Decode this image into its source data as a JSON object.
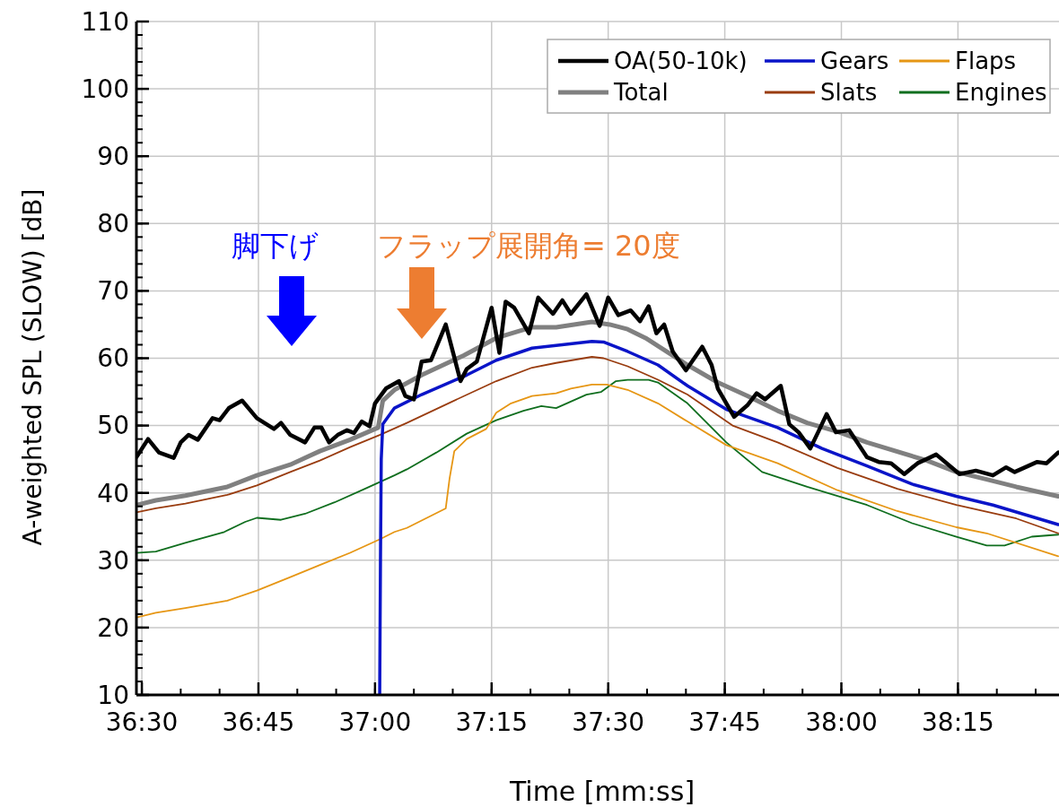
{
  "chart_data": {
    "type": "line",
    "xlabel": "Time [mm:ss]",
    "ylabel": "A-weighted SPL (SLOW) [dB]",
    "xlim": [
      2189.3,
      2308
    ],
    "ylim": [
      10,
      110
    ],
    "xticks": [
      {
        "value": 2190,
        "label": "36:30"
      },
      {
        "value": 2205,
        "label": "36:45"
      },
      {
        "value": 2220,
        "label": "37:00"
      },
      {
        "value": 2235,
        "label": "37:15"
      },
      {
        "value": 2250,
        "label": "37:30"
      },
      {
        "value": 2265,
        "label": "37:45"
      },
      {
        "value": 2280,
        "label": "38:00"
      },
      {
        "value": 2295,
        "label": "38:15"
      }
    ],
    "yticks": [
      10,
      20,
      30,
      40,
      50,
      60,
      70,
      80,
      90,
      100,
      110
    ],
    "grid": true,
    "legend": "top right",
    "line_style": "solid",
    "annotations": [
      "脚下げ",
      "フラップ展開角= 20度"
    ],
    "series": [
      {
        "name": "OA(50-10k)",
        "color": "#000000",
        "x": [
          2189.3,
          2190.8,
          2192.2,
          2194.1,
          2195.0,
          2196.0,
          2197.2,
          2199.1,
          2200.0,
          2201.2,
          2202.9,
          2204.8,
          2207.0,
          2207.9,
          2209.1,
          2211.0,
          2212.2,
          2213.1,
          2214.1,
          2215.2,
          2216.4,
          2217.3,
          2218.3,
          2219.3,
          2220.0,
          2221.4,
          2223.1,
          2223.9,
          2225.0,
          2226.0,
          2227.2,
          2229.1,
          2231.0,
          2231.8,
          2233.1,
          2235.0,
          2236.0,
          2236.8,
          2237.9,
          2239.8,
          2241.0,
          2242.9,
          2244.1,
          2245.2,
          2247.2,
          2248.9,
          2250.0,
          2251.3,
          2252.9,
          2254.1,
          2255.2,
          2256.2,
          2257.2,
          2258.3,
          2260.0,
          2262.1,
          2263.3,
          2264.1,
          2266.2,
          2267.9,
          2269.1,
          2270.2,
          2272.2,
          2273.3,
          2274.5,
          2276.0,
          2277.0,
          2278.1,
          2279.3,
          2281.0,
          2283.3,
          2284.8,
          2286.4,
          2288.1,
          2289.8,
          2292.2,
          2295.2,
          2297.3,
          2299.5,
          2301.2,
          2302.3,
          2305.2,
          2306.4,
          2307.9
        ],
        "values": [
          45.3,
          48.0,
          46.0,
          45.2,
          47.5,
          48.6,
          47.9,
          51.1,
          50.8,
          52.6,
          53.7,
          51.1,
          49.5,
          50.4,
          48.6,
          47.5,
          49.7,
          49.7,
          47.5,
          48.6,
          49.3,
          48.9,
          50.6,
          49.9,
          53.3,
          55.5,
          56.6,
          54.4,
          53.9,
          59.5,
          59.7,
          65.0,
          56.6,
          58.4,
          59.5,
          67.5,
          60.8,
          68.4,
          67.5,
          63.7,
          69.0,
          66.6,
          68.6,
          66.6,
          69.5,
          64.8,
          69.0,
          66.4,
          67.1,
          65.5,
          67.7,
          63.7,
          65.0,
          61.0,
          58.2,
          61.7,
          59.0,
          55.5,
          51.3,
          53.0,
          54.8,
          53.9,
          55.9,
          50.2,
          49.0,
          46.6,
          49.0,
          51.7,
          49.0,
          49.3,
          45.3,
          44.6,
          44.4,
          42.8,
          44.4,
          45.7,
          42.8,
          43.3,
          42.6,
          43.8,
          43.1,
          44.6,
          44.4,
          46.0
        ]
      },
      {
        "name": "Gears",
        "color": "#0a14c8",
        "x": [
          2220.6,
          2220.7,
          2220.8,
          2221.0,
          2222.5,
          2226.0,
          2231.8,
          2235.6,
          2240.2,
          2243.3,
          2247.9,
          2249.4,
          2252.5,
          2256.4,
          2260.2,
          2265.2,
          2271.8,
          2277.5,
          2283.3,
          2289.1,
          2294.8,
          2299.5,
          2307.9
        ],
        "values": [
          10,
          30,
          45,
          50.2,
          52.6,
          54.6,
          57.5,
          59.7,
          61.5,
          61.9,
          62.5,
          62.4,
          61.0,
          59.0,
          55.9,
          52.4,
          49.7,
          46.6,
          44.0,
          41.3,
          39.5,
          38.2,
          35.3
        ]
      },
      {
        "name": "Flaps",
        "color": "#e69614",
        "x": [
          2189.3,
          2191.8,
          2195.6,
          2201.0,
          2204.8,
          2209.1,
          2212.9,
          2216.8,
          2220.6,
          2222.5,
          2224.1,
          2229.1,
          2229.6,
          2230.2,
          2231.8,
          2234.3,
          2235.6,
          2237.5,
          2240.2,
          2243.3,
          2245.2,
          2247.9,
          2249.8,
          2252.5,
          2256.4,
          2260.2,
          2265.2,
          2271.8,
          2279.5,
          2287.2,
          2294.8,
          2298.7,
          2307.9
        ],
        "values": [
          21.5,
          22.2,
          22.9,
          24.0,
          25.5,
          27.5,
          29.3,
          31.1,
          33.1,
          34.2,
          34.8,
          37.7,
          42.2,
          46.2,
          48.0,
          49.5,
          51.9,
          53.3,
          54.4,
          54.8,
          55.5,
          56.1,
          56.1,
          55.3,
          53.3,
          50.6,
          47.1,
          44.4,
          40.4,
          37.3,
          34.9,
          34.0,
          30.6
        ]
      },
      {
        "name": "Total",
        "color": "#808080",
        "x": [
          2189.3,
          2191.8,
          2195.6,
          2201.0,
          2204.8,
          2209.1,
          2212.9,
          2216.8,
          2220.4,
          2221.0,
          2222.5,
          2226.0,
          2231.4,
          2235.6,
          2240.2,
          2243.3,
          2247.9,
          2250.2,
          2252.5,
          2254.8,
          2260.2,
          2264.1,
          2267.9,
          2271.8,
          2275.6,
          2279.5,
          2283.3,
          2291.0,
          2294.8,
          2298.7,
          2302.5,
          2307.9
        ],
        "values": [
          38.2,
          38.9,
          39.6,
          40.9,
          42.6,
          44.2,
          46.2,
          47.9,
          49.7,
          53.7,
          55.3,
          57.5,
          60.4,
          63.0,
          64.6,
          64.6,
          65.4,
          65.0,
          64.3,
          63.0,
          59.0,
          56.4,
          54.4,
          52.2,
          50.4,
          49.1,
          47.5,
          44.8,
          43.1,
          42.0,
          40.9,
          39.5
        ]
      },
      {
        "name": "Slats",
        "color": "#993c0f",
        "x": [
          2189.3,
          2191.8,
          2195.6,
          2201.0,
          2204.8,
          2209.1,
          2212.9,
          2216.8,
          2220.6,
          2224.1,
          2229.8,
          2235.6,
          2240.2,
          2243.3,
          2247.9,
          2249.4,
          2252.5,
          2256.4,
          2260.2,
          2266.0,
          2271.8,
          2279.5,
          2287.2,
          2294.8,
          2302.5,
          2307.9
        ],
        "values": [
          37.1,
          37.7,
          38.4,
          39.7,
          41.1,
          43.1,
          44.8,
          46.8,
          48.6,
          50.4,
          53.5,
          56.6,
          58.6,
          59.3,
          60.2,
          60.0,
          58.8,
          56.8,
          54.6,
          50.0,
          47.5,
          43.7,
          40.6,
          38.2,
          36.2,
          34.0
        ]
      },
      {
        "name": "Engines",
        "color": "#0f6e1e",
        "x": [
          2189.3,
          2191.8,
          2195.6,
          2200.6,
          2203.3,
          2204.8,
          2207.9,
          2211.0,
          2214.8,
          2218.7,
          2222.5,
          2224.1,
          2227.9,
          2231.8,
          2235.6,
          2239.1,
          2241.4,
          2243.3,
          2247.2,
          2249.1,
          2251.0,
          2252.5,
          2255.2,
          2256.4,
          2260.2,
          2265.2,
          2269.8,
          2275.6,
          2283.3,
          2289.1,
          2294.8,
          2298.7,
          2301.0,
          2304.5,
          2307.9
        ],
        "values": [
          31.1,
          31.3,
          32.6,
          34.2,
          35.7,
          36.3,
          36.0,
          36.9,
          38.6,
          40.6,
          42.6,
          43.5,
          46.0,
          48.8,
          50.8,
          52.2,
          52.9,
          52.6,
          54.6,
          55.0,
          56.6,
          56.8,
          56.8,
          56.4,
          53.3,
          47.5,
          43.1,
          40.9,
          38.2,
          35.5,
          33.5,
          32.2,
          32.2,
          33.5,
          33.8
        ]
      }
    ]
  }
}
